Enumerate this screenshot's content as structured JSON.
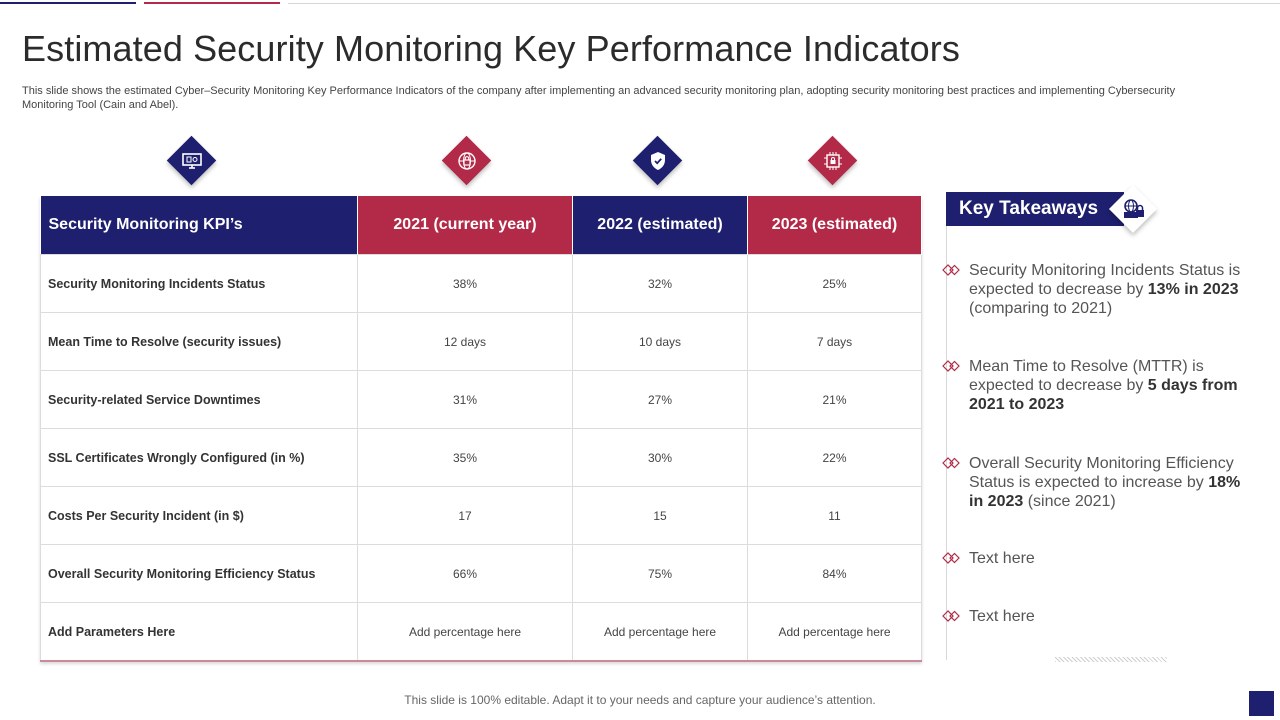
{
  "title": "Estimated Security Monitoring Key Performance Indicators",
  "subtitle": "This slide shows the estimated Cyber–Security Monitoring Key Performance Indicators of the company after implementing an advanced security monitoring plan, adopting security monitoring best practices and implementing Cybersecurity Monitoring Tool (Cain and Abel).",
  "colors": {
    "navy": "#1e1f6e",
    "red": "#b22a47"
  },
  "column_icons": [
    "computer-monitor-icon",
    "globe-lock-icon",
    "shield-check-icon",
    "chip-lock-icon"
  ],
  "table": {
    "headers": [
      "Security Monitoring KPI’s",
      "2021 (current year)",
      "2022 (estimated)",
      "2023 (estimated)"
    ],
    "rows": [
      {
        "label": "Security Monitoring Incidents Status",
        "values": [
          "38%",
          "32%",
          "25%"
        ]
      },
      {
        "label": "Mean Time to Resolve (security  issues)",
        "values": [
          "12 days",
          "10 days",
          "7 days"
        ]
      },
      {
        "label": "Security-related Service Downtimes",
        "values": [
          "31%",
          "27%",
          "21%"
        ]
      },
      {
        "label": "SSL Certificates Wrongly Configured (in %)",
        "values": [
          "35%",
          "30%",
          "22%"
        ]
      },
      {
        "label": "Costs  Per Security Incident (in $)",
        "values": [
          "17",
          "15",
          "11"
        ]
      },
      {
        "label": "Overall Security Monitoring Efficiency  Status",
        "values": [
          "66%",
          "75%",
          "84%"
        ]
      },
      {
        "label": "Add Parameters Here",
        "values": [
          "Add percentage  here",
          "Add percentage  here",
          "Add percentage  here"
        ]
      }
    ]
  },
  "key_takeaways": {
    "title": "Key Takeaways",
    "icon": "globe-monitor-lock-icon",
    "items": [
      {
        "pre": "Security Monitoring Incidents Status is expected to decrease by ",
        "bold": "13% in 2023",
        "post": " (comparing to 2021)"
      },
      {
        "pre": "Mean Time to Resolve (MTTR)  is expected to decrease by ",
        "bold": "5 days from 2021 to 2023",
        "post": ""
      },
      {
        "pre": "Overall Security Monitoring Efficiency Status is expected to increase by ",
        "bold": "18% in 2023",
        "post": " (since 2021)"
      },
      {
        "pre": "Text here",
        "bold": "",
        "post": ""
      },
      {
        "pre": "Text here",
        "bold": "",
        "post": ""
      }
    ]
  },
  "footer": "This slide is 100% editable. Adapt it to your needs and capture your audience’s attention."
}
